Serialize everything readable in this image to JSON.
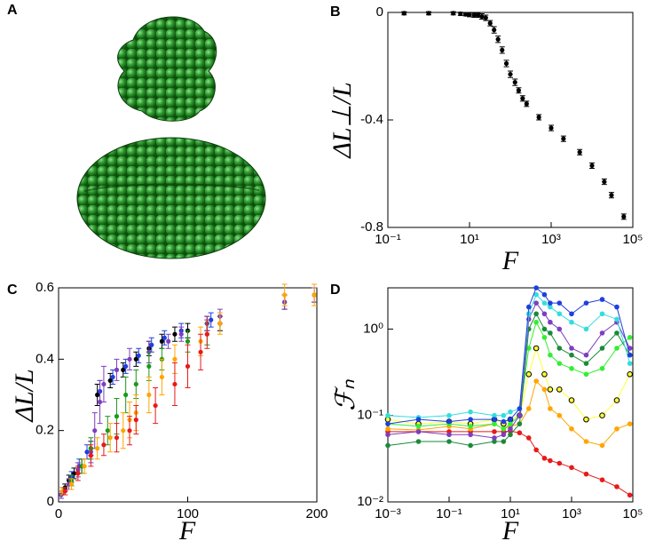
{
  "panel_labels": [
    "A",
    "B",
    "C",
    "D"
  ],
  "chart_data": [
    {
      "type": "scatter",
      "xlabel": "F",
      "ylabel": "ΔL⊥/L",
      "xscale": "log",
      "xlim": [
        0.1,
        100000
      ],
      "ylim": [
        -0.8,
        0
      ],
      "xticks": [
        {
          "value": 0.1,
          "label": "10⁻¹"
        },
        {
          "value": 10,
          "label": "10¹"
        },
        {
          "value": 1000,
          "label": "10³"
        },
        {
          "value": 100000,
          "label": "10⁵"
        }
      ],
      "yticks": [
        0,
        -0.4,
        -0.8
      ],
      "x": [
        0.25,
        1,
        4,
        6,
        8,
        10,
        13,
        16,
        20,
        25,
        32,
        40,
        50,
        63,
        80,
        100,
        130,
        160,
        200,
        250,
        500,
        1000,
        2000,
        5000,
        10000,
        20000,
        30000,
        60000
      ],
      "series": [
        {
          "color": "#000000",
          "values": [
            -0.003,
            -0.003,
            -0.003,
            -0.005,
            -0.007,
            -0.008,
            -0.01,
            -0.01,
            -0.015,
            -0.02,
            -0.04,
            -0.065,
            -0.1,
            -0.14,
            -0.19,
            -0.23,
            -0.26,
            -0.29,
            -0.32,
            -0.34,
            -0.39,
            -0.43,
            -0.47,
            -0.52,
            -0.57,
            -0.63,
            -0.68,
            -0.76
          ],
          "errors": [
            0.006,
            0.006,
            0.006,
            0.006,
            0.006,
            0.008,
            0.008,
            0.008,
            0.01,
            0.01,
            0.01,
            0.012,
            0.012,
            0.012,
            0.012,
            0.012,
            0.012,
            0.01,
            0.01,
            0.01,
            0.01,
            0.01,
            0.01,
            0.01,
            0.01,
            0.01,
            0.01,
            0.01
          ]
        }
      ]
    },
    {
      "type": "scatter",
      "xlabel": "F",
      "ylabel": "ΔL/L",
      "xlim": [
        0,
        200
      ],
      "ylim": [
        0,
        0.6
      ],
      "xticks": [
        0,
        100,
        200
      ],
      "yticks": [
        0,
        0.2,
        0.4,
        0.6
      ],
      "series": [
        {
          "color": "#000000",
          "x": [
            2,
            5,
            8,
            12,
            18,
            25,
            30,
            40,
            50,
            60,
            70,
            80,
            90,
            100,
            115,
            125,
            175,
            198
          ],
          "values": [
            0.02,
            0.04,
            0.06,
            0.08,
            0.1,
            0.15,
            0.3,
            0.34,
            0.37,
            0.4,
            0.43,
            0.45,
            0.47,
            0.48,
            0.5,
            0.5,
            0.56,
            0.58
          ],
          "errors": [
            0.01,
            0.01,
            0.015,
            0.015,
            0.02,
            0.02,
            0.03,
            0.02,
            0.02,
            0.02,
            0.02,
            0.02,
            0.02,
            0.02,
            0.02,
            0.02,
            0.02,
            0.02
          ]
        },
        {
          "color": "#1f3fdf",
          "x": [
            4,
            10,
            16,
            22,
            32,
            42,
            52,
            62,
            72,
            82,
            95,
            118
          ],
          "values": [
            0.03,
            0.07,
            0.1,
            0.14,
            0.31,
            0.35,
            0.38,
            0.41,
            0.44,
            0.46,
            0.48,
            0.51
          ],
          "errors": [
            0.01,
            0.015,
            0.02,
            0.02,
            0.03,
            0.02,
            0.02,
            0.02,
            0.02,
            0.02,
            0.02,
            0.02
          ]
        },
        {
          "color": "#7d3fbf",
          "x": [
            2,
            8,
            15,
            25,
            28,
            32,
            35,
            45,
            55,
            70,
            85,
            95,
            115,
            125,
            175,
            198
          ],
          "values": [
            0.02,
            0.05,
            0.09,
            0.14,
            0.2,
            0.28,
            0.33,
            0.37,
            0.4,
            0.42,
            0.45,
            0.47,
            0.5,
            0.52,
            0.56,
            0.58
          ],
          "errors": [
            0.01,
            0.015,
            0.02,
            0.03,
            0.05,
            0.06,
            0.05,
            0.03,
            0.03,
            0.03,
            0.02,
            0.02,
            0.02,
            0.02,
            0.02,
            0.02
          ]
        },
        {
          "color": "#1a9a1a",
          "x": [
            3,
            10,
            18,
            25,
            38,
            45,
            52,
            60,
            70,
            80,
            100,
            115
          ],
          "values": [
            0.03,
            0.06,
            0.1,
            0.15,
            0.2,
            0.24,
            0.3,
            0.33,
            0.38,
            0.4,
            0.45,
            0.47
          ],
          "errors": [
            0.01,
            0.015,
            0.02,
            0.03,
            0.04,
            0.05,
            0.05,
            0.04,
            0.04,
            0.03,
            0.03,
            0.03
          ]
        },
        {
          "color": "#ffa500",
          "x": [
            3,
            10,
            20,
            30,
            40,
            50,
            55,
            60,
            70,
            80,
            90,
            110,
            125,
            175,
            198
          ],
          "values": [
            0.03,
            0.05,
            0.1,
            0.15,
            0.18,
            0.2,
            0.23,
            0.25,
            0.3,
            0.35,
            0.4,
            0.45,
            0.5,
            0.58,
            0.58
          ],
          "errors": [
            0.01,
            0.015,
            0.02,
            0.03,
            0.04,
            0.05,
            0.05,
            0.05,
            0.05,
            0.05,
            0.04,
            0.04,
            0.03,
            0.03,
            0.03
          ]
        },
        {
          "color": "#e81a1a",
          "x": [
            5,
            15,
            25,
            35,
            45,
            55,
            60,
            75,
            90,
            100,
            110,
            115
          ],
          "values": [
            0.03,
            0.08,
            0.13,
            0.16,
            0.18,
            0.2,
            0.23,
            0.27,
            0.33,
            0.38,
            0.42,
            0.47
          ],
          "errors": [
            0.01,
            0.02,
            0.03,
            0.03,
            0.04,
            0.04,
            0.04,
            0.05,
            0.06,
            0.06,
            0.05,
            0.04
          ]
        }
      ]
    },
    {
      "type": "line",
      "xlabel": "F",
      "ylabel": "ℱₙ",
      "xscale": "log",
      "yscale": "log",
      "xlim": [
        0.001,
        100000
      ],
      "ylim": [
        0.01,
        3
      ],
      "xticks": [
        {
          "value": 0.001,
          "label": "10⁻³"
        },
        {
          "value": 0.1,
          "label": "10⁻¹"
        },
        {
          "value": 10,
          "label": "10¹"
        },
        {
          "value": 1000,
          "label": "10³"
        },
        {
          "value": 100000,
          "label": "10⁵"
        }
      ],
      "yticks": [
        {
          "value": 0.01,
          "label": "10⁻²"
        },
        {
          "value": 0.1,
          "label": "10⁻¹"
        },
        {
          "value": 1,
          "label": "10⁰"
        }
      ],
      "x": [
        0.001,
        0.01,
        0.1,
        0.5,
        3,
        6,
        10,
        20,
        40,
        70,
        130,
        200,
        400,
        1000,
        3000,
        10000,
        30000,
        80000
      ],
      "series": [
        {
          "color": "#e81a1a",
          "values": [
            0.065,
            0.065,
            0.065,
            0.065,
            0.065,
            0.065,
            0.066,
            0.063,
            0.055,
            0.04,
            0.032,
            0.03,
            0.028,
            0.025,
            0.021,
            0.018,
            0.015,
            0.012
          ]
        },
        {
          "color": "#ffa500",
          "values": [
            0.07,
            0.068,
            0.075,
            0.07,
            0.08,
            0.07,
            0.075,
            0.08,
            0.12,
            0.25,
            0.2,
            0.12,
            0.1,
            0.07,
            0.05,
            0.045,
            0.07,
            0.08
          ]
        },
        {
          "color": "#ffff33",
          "edgecolor": "#000000",
          "values": [
            0.09,
            0.08,
            0.085,
            0.08,
            0.09,
            0.08,
            0.09,
            0.1,
            0.3,
            0.6,
            0.3,
            0.2,
            0.2,
            0.15,
            0.09,
            0.1,
            0.15,
            0.3
          ]
        },
        {
          "color": "#33ee33",
          "values": [
            0.08,
            0.075,
            0.08,
            0.075,
            0.08,
            0.07,
            0.08,
            0.1,
            0.6,
            1.2,
            0.8,
            0.5,
            0.4,
            0.35,
            0.3,
            0.35,
            0.6,
            0.8
          ]
        },
        {
          "color": "#1a8a3a",
          "values": [
            0.045,
            0.05,
            0.05,
            0.045,
            0.05,
            0.05,
            0.06,
            0.08,
            1.0,
            1.5,
            1.0,
            0.9,
            0.6,
            0.5,
            0.4,
            0.6,
            0.9,
            0.5
          ]
        },
        {
          "color": "#7d3fbf",
          "values": [
            0.06,
            0.065,
            0.06,
            0.06,
            0.055,
            0.06,
            0.07,
            0.1,
            1.3,
            2.0,
            1.5,
            1.2,
            1.0,
            0.6,
            0.5,
            0.9,
            1.2,
            0.6
          ]
        },
        {
          "color": "#33dddd",
          "values": [
            0.1,
            0.095,
            0.1,
            0.11,
            0.1,
            0.1,
            0.11,
            0.12,
            1.5,
            2.5,
            2.0,
            1.8,
            1.5,
            1.2,
            1.0,
            1.5,
            1.3,
            0.4
          ]
        },
        {
          "color": "#1f3fdf",
          "values": [
            0.08,
            0.09,
            0.085,
            0.09,
            0.09,
            0.085,
            0.09,
            0.12,
            1.8,
            3.0,
            2.5,
            2.0,
            2.0,
            1.5,
            2.0,
            2.2,
            1.8,
            0.5
          ]
        }
      ]
    }
  ]
}
